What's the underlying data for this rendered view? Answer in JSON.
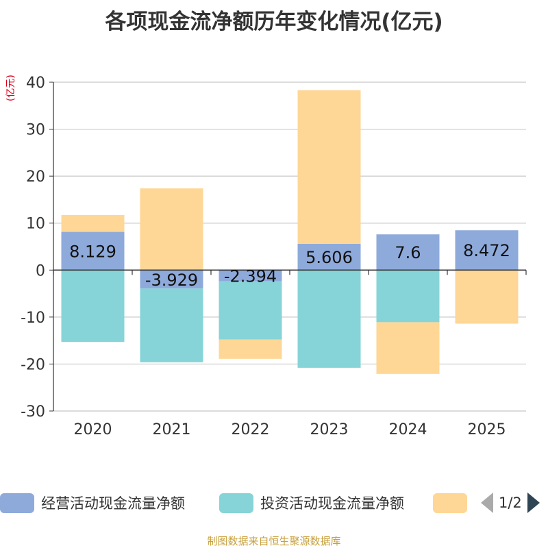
{
  "title": "各项现金流净额历年变化情况(亿元)",
  "unit": "(亿元)",
  "footer": "制图数据来自恒生聚源数据库",
  "legend": {
    "items": [
      {
        "label": "经营活动现金流量净额",
        "color": "#8eaadb"
      },
      {
        "label": "投资活动现金流量净额",
        "color": "#86d4d8"
      },
      {
        "label": "",
        "color": "#fed796"
      }
    ],
    "page": "1/2"
  },
  "chart_data": {
    "type": "bar",
    "stacked": true,
    "categories": [
      "2020",
      "2021",
      "2022",
      "2023",
      "2024",
      "2025"
    ],
    "series": [
      {
        "name": "经营活动现金流量净额",
        "color": "#8eaadb",
        "values": [
          8.129,
          -3.929,
          -2.394,
          5.606,
          7.6,
          8.472
        ],
        "labels": [
          "8.129",
          "-3.929",
          "-2.394",
          "5.606",
          "7.6",
          "8.472"
        ]
      },
      {
        "name": "投资活动现金流量净额",
        "color": "#86d4d8",
        "values": [
          -15.3,
          -15.7,
          -12.4,
          -20.8,
          -11.1,
          0
        ]
      },
      {
        "name": "",
        "color": "#fed796",
        "values": [
          3.6,
          17.4,
          -4.1,
          32.7,
          -11.0,
          -11.4
        ]
      }
    ],
    "ylim": [
      -30,
      40
    ],
    "yticks": [
      40,
      30,
      20,
      10,
      0,
      -10,
      -20,
      -30
    ],
    "ytick_labels": [
      "40",
      "30",
      "20",
      "10",
      "0",
      "-10",
      "-20",
      "-30"
    ],
    "xlabel": "",
    "ylabel": "(亿元)",
    "grid": true
  }
}
